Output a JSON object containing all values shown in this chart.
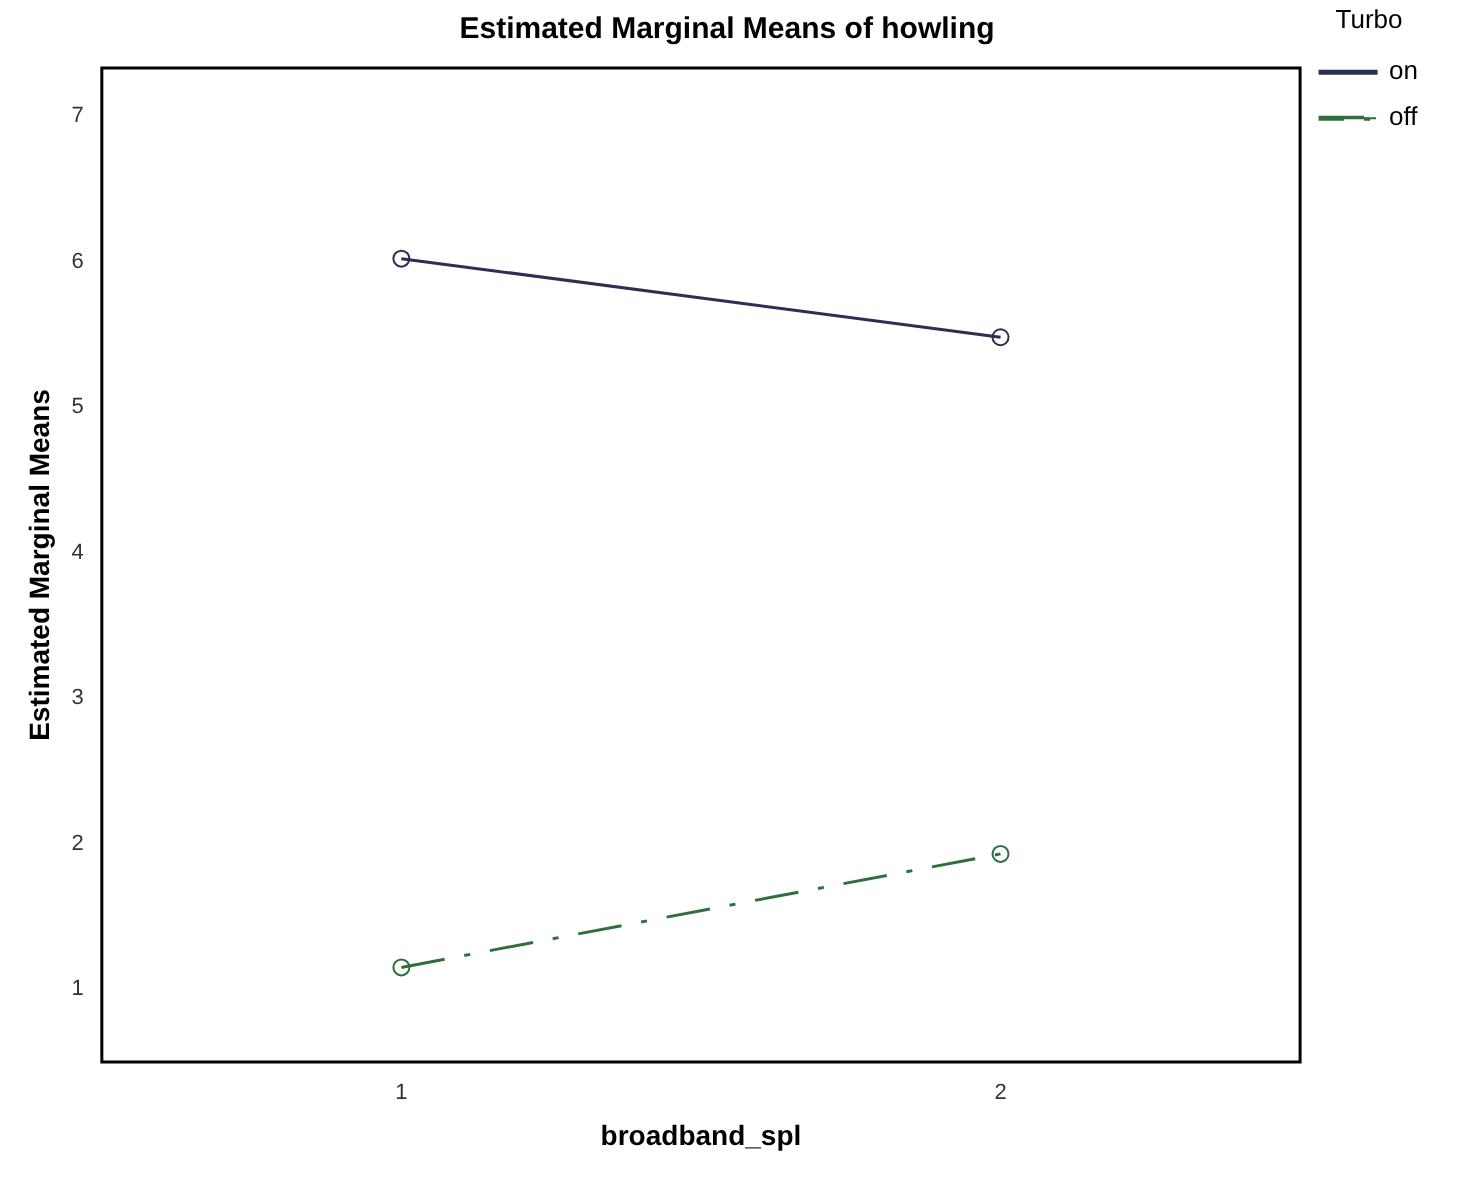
{
  "chart_data": {
    "type": "line",
    "title": "Estimated Marginal Means of howling",
    "xlabel": "broadband_spl",
    "ylabel": "Estimated Marginal Means",
    "legend_title": "Turbo",
    "categories": [
      "1",
      "2"
    ],
    "series": [
      {
        "name": "on",
        "color": "#2b2f52",
        "values": [
          6.02,
          5.48
        ],
        "line_style": "solid"
      },
      {
        "name": "off",
        "color": "#2f6e3e",
        "values": [
          1.15,
          1.93
        ],
        "line_style": "dashed"
      }
    ],
    "ylim": [
      0.5,
      7.33
    ],
    "yticks": [
      1,
      2,
      3,
      4,
      5,
      6,
      7
    ],
    "grid": false,
    "legend": "top right",
    "marker": "circle"
  }
}
